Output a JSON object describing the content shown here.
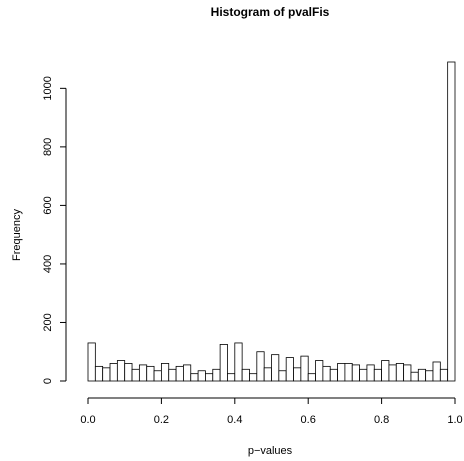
{
  "chart_data": {
    "type": "histogram",
    "title": "Histogram of pvalFis",
    "x_label": "p−values",
    "y_label": "Frequency",
    "bins": [
      0,
      0.02,
      0.04,
      0.06,
      0.08,
      0.1,
      0.12,
      0.14,
      0.16,
      0.18,
      0.2,
      0.22,
      0.24,
      0.26,
      0.28,
      0.3,
      0.32,
      0.34,
      0.36,
      0.38,
      0.4,
      0.42,
      0.44,
      0.46,
      0.48,
      0.5,
      0.52,
      0.54,
      0.56,
      0.58,
      0.6,
      0.62,
      0.64,
      0.66,
      0.68,
      0.7,
      0.72,
      0.74,
      0.76,
      0.78,
      0.8,
      0.82,
      0.84,
      0.86,
      0.88,
      0.9,
      0.92,
      0.94,
      0.96,
      0.98,
      1
    ],
    "values": [
      130,
      50,
      45,
      60,
      70,
      60,
      40,
      55,
      50,
      35,
      60,
      40,
      50,
      55,
      25,
      35,
      25,
      40,
      125,
      25,
      130,
      40,
      25,
      100,
      45,
      90,
      35,
      80,
      45,
      85,
      25,
      70,
      50,
      40,
      60,
      60,
      55,
      40,
      55,
      40,
      70,
      55,
      60,
      55,
      30,
      40,
      35,
      65,
      40,
      1090
    ],
    "color": "#ffffff",
    "edge_color": "#000000",
    "xlim": [
      0,
      1
    ],
    "xticks": [
      {
        "value": 0,
        "label": "0.0"
      },
      0.2,
      0.4,
      0.6,
      0.8,
      {
        "value": 1,
        "label": "1.0"
      }
    ],
    "ylim": [
      0,
      1090
    ],
    "yticks": [
      0,
      200,
      400,
      600,
      800,
      1000
    ]
  }
}
